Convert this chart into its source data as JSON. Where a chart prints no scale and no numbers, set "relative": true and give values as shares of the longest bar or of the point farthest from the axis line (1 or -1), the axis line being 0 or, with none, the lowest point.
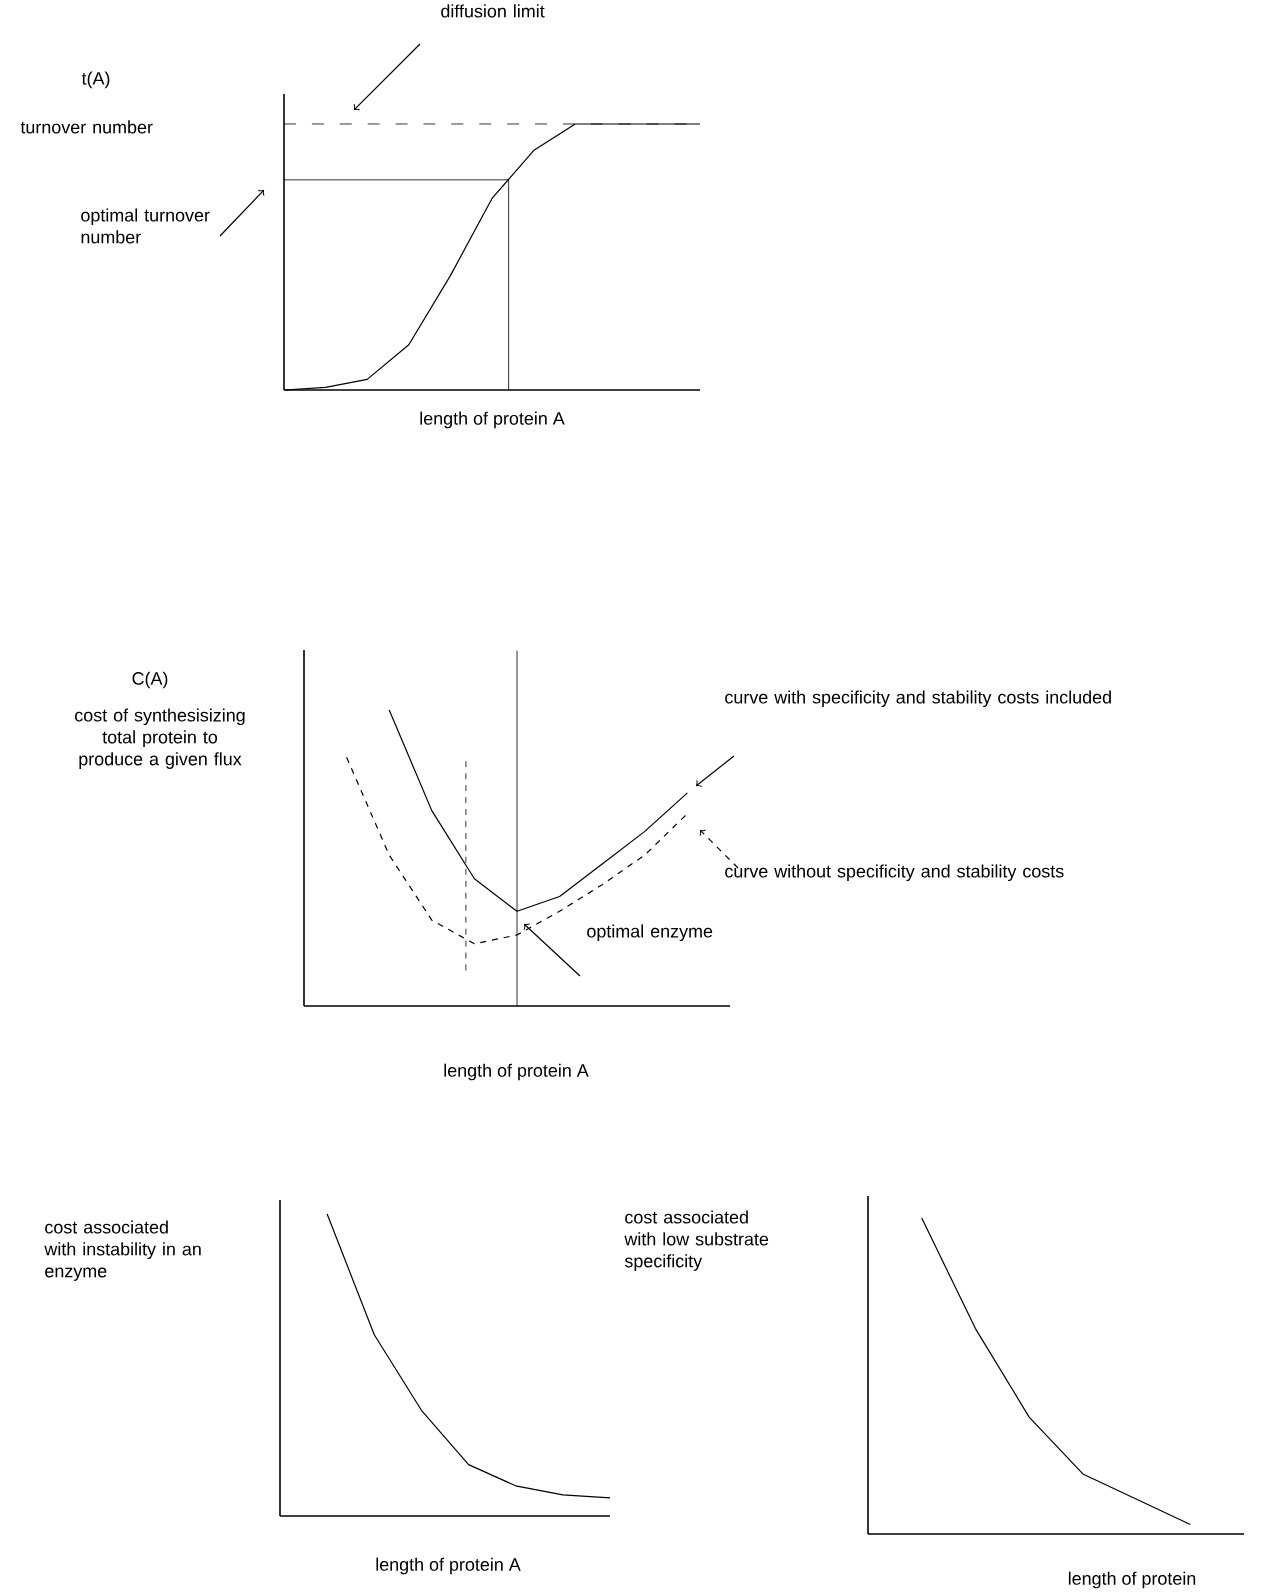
{
  "chart_data": [
    {
      "type": "line",
      "relative": true,
      "xlabel": "length of protein A",
      "ylabel": "t(A)",
      "categories": [
        null,
        null,
        null,
        null,
        null,
        null,
        null,
        null,
        null,
        null,
        null
      ],
      "series": [
        {
          "color": "#000000",
          "line_style": "solid",
          "values": [
            0,
            0.01,
            0.04,
            0.17,
            0.43,
            0.72,
            0.9,
            1,
            1,
            1,
            1
          ]
        }
      ],
      "ref_lines": [
        {
          "axis": "y",
          "value": 1,
          "line_style": "dashed"
        },
        {
          "axis": "y",
          "value": 0.79,
          "line_style": "solid"
        }
      ],
      "annotations": [
        "diffusion limit",
        "turnover number",
        "optimal turnover number"
      ]
    },
    {
      "type": "line",
      "relative": true,
      "xlabel": "length of protein A",
      "ylabel": "C(A)",
      "categories": [
        null,
        null,
        null,
        null,
        null,
        null,
        null,
        null,
        null,
        null,
        null
      ],
      "series": [
        {
          "name": "curve with specificity and stability costs included",
          "color": "#000000",
          "line_style": "solid",
          "values": [
            null,
            null,
            1,
            0.66,
            0.43,
            0.32,
            0.37,
            0.48,
            0.59,
            0.72,
            null
          ]
        },
        {
          "name": "curve without specificity and stability costs",
          "color": "#000000",
          "line_style": "dashed",
          "values": [
            null,
            0.84,
            0.51,
            0.29,
            0.21,
            0.24,
            0.32,
            0.41,
            0.51,
            0.65,
            null
          ]
        }
      ],
      "annotations": [
        "cost of synthesisizing total protein to produce a given flux",
        "optimal enzyme"
      ]
    },
    {
      "type": "line",
      "relative": true,
      "xlabel": "length of protein A",
      "ylabel": "cost associated with instability in an enzyme",
      "categories": [
        null,
        null,
        null,
        null,
        null,
        null,
        null,
        null
      ],
      "series": [
        {
          "color": "#000000",
          "line_style": "solid",
          "values": [
            null,
            1,
            0.6,
            0.35,
            0.17,
            0.1,
            0.07,
            0.06
          ]
        }
      ]
    },
    {
      "type": "line",
      "relative": true,
      "xlabel": "length of protein",
      "ylabel": "cost associated with low substrate specificity",
      "categories": [
        null,
        null,
        null,
        null,
        null,
        null,
        null,
        null
      ],
      "series": [
        {
          "color": "#000000",
          "line_style": "solid",
          "values": [
            null,
            1,
            0.65,
            0.37,
            0.19,
            0.11,
            0.03,
            null
          ]
        }
      ]
    }
  ]
}
